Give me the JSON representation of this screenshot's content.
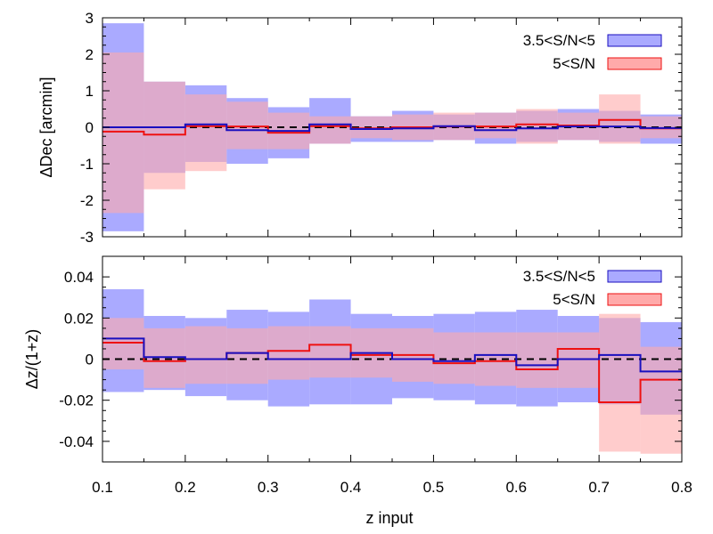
{
  "chart_data": [
    {
      "type": "area",
      "ylabel": "ΔDec [arcmin]",
      "xlim": [
        0.1,
        0.8
      ],
      "ylim": [
        -3,
        3
      ],
      "yticks": [
        "-3",
        "-2",
        "-1",
        "0",
        "1",
        "2",
        "3"
      ],
      "ytick_values": [
        -3,
        -2,
        -1,
        0,
        1,
        2,
        3
      ],
      "x_edges": [
        0.1,
        0.15,
        0.2,
        0.25,
        0.3,
        0.35,
        0.4,
        0.45,
        0.5,
        0.55,
        0.6,
        0.65,
        0.7,
        0.75,
        0.8
      ],
      "reference_line": 0,
      "legend_position": "top-right",
      "series": [
        {
          "name": "3.5<S/N<5",
          "line_color": "#1a0fbf",
          "fill_color": "#aaaaff",
          "median": [
            0.0,
            0.0,
            0.08,
            -0.08,
            -0.1,
            0.08,
            -0.05,
            -0.03,
            0.03,
            -0.08,
            -0.03,
            0.02,
            0.02,
            -0.02
          ],
          "upper": [
            2.85,
            1.25,
            1.15,
            0.8,
            0.55,
            0.8,
            0.3,
            0.45,
            0.35,
            0.4,
            0.45,
            0.5,
            0.45,
            0.35
          ],
          "lower": [
            -2.85,
            -1.25,
            -0.95,
            -1.0,
            -0.85,
            -0.45,
            -0.4,
            -0.4,
            -0.35,
            -0.45,
            -0.4,
            -0.35,
            -0.4,
            -0.45
          ]
        },
        {
          "name": "5<S/N",
          "line_color": "#ee1111",
          "fill_color": "#ffaaaa",
          "median": [
            -0.12,
            -0.2,
            0.03,
            0.02,
            -0.15,
            0.03,
            -0.03,
            0.0,
            0.02,
            0.02,
            0.08,
            0.05,
            0.2,
            -0.03
          ],
          "upper": [
            2.05,
            1.25,
            0.9,
            0.7,
            0.4,
            0.3,
            0.3,
            0.35,
            0.4,
            0.4,
            0.5,
            0.4,
            0.9,
            0.3
          ],
          "lower": [
            -2.35,
            -1.7,
            -1.2,
            -0.6,
            -0.6,
            -0.45,
            -0.3,
            -0.35,
            -0.35,
            -0.3,
            -0.45,
            -0.35,
            -0.45,
            -0.3
          ]
        }
      ]
    },
    {
      "type": "area",
      "xlabel": "z input",
      "ylabel": "Δz/(1+z)",
      "xlim": [
        0.1,
        0.8
      ],
      "ylim": [
        -0.05,
        0.05
      ],
      "yticks": [
        "-0.04",
        "-0.02",
        "0",
        "0.02",
        "0.04"
      ],
      "ytick_values": [
        -0.04,
        -0.02,
        0,
        0.02,
        0.04
      ],
      "xticks": [
        "0.1",
        "0.2",
        "0.3",
        "0.4",
        "0.5",
        "0.6",
        "0.7",
        "0.8"
      ],
      "xtick_values": [
        0.1,
        0.2,
        0.3,
        0.4,
        0.5,
        0.6,
        0.7,
        0.8
      ],
      "x_edges": [
        0.1,
        0.15,
        0.2,
        0.25,
        0.3,
        0.35,
        0.4,
        0.45,
        0.5,
        0.55,
        0.6,
        0.65,
        0.7,
        0.75,
        0.8
      ],
      "reference_line": 0,
      "legend_position": "top-right",
      "series": [
        {
          "name": "3.5<S/N<5",
          "line_color": "#1a0fbf",
          "fill_color": "#aaaaff",
          "median": [
            0.01,
            0.001,
            0.0,
            0.003,
            0.0,
            0.0,
            0.003,
            0.0,
            -0.001,
            0.002,
            -0.003,
            0.0,
            0.002,
            -0.006
          ],
          "upper": [
            0.034,
            0.021,
            0.02,
            0.024,
            0.023,
            0.029,
            0.022,
            0.021,
            0.022,
            0.023,
            0.024,
            0.021,
            0.02,
            0.018
          ],
          "lower": [
            -0.016,
            -0.015,
            -0.018,
            -0.02,
            -0.023,
            -0.022,
            -0.022,
            -0.019,
            -0.02,
            -0.022,
            -0.023,
            -0.021,
            -0.022,
            -0.027
          ]
        },
        {
          "name": "5<S/N",
          "line_color": "#ee1111",
          "fill_color": "#ffaaaa",
          "median": [
            0.008,
            -0.001,
            0.0,
            0.003,
            0.004,
            0.007,
            0.002,
            0.002,
            -0.002,
            -0.001,
            -0.005,
            0.005,
            -0.021,
            -0.01
          ],
          "upper": [
            0.02,
            0.015,
            0.016,
            0.015,
            0.016,
            0.016,
            0.015,
            0.015,
            0.013,
            0.013,
            0.013,
            0.013,
            0.022,
            0.006
          ],
          "lower": [
            -0.005,
            -0.014,
            -0.012,
            -0.012,
            -0.01,
            -0.009,
            -0.009,
            -0.011,
            -0.012,
            -0.013,
            -0.014,
            -0.014,
            -0.045,
            -0.046
          ]
        }
      ]
    }
  ]
}
